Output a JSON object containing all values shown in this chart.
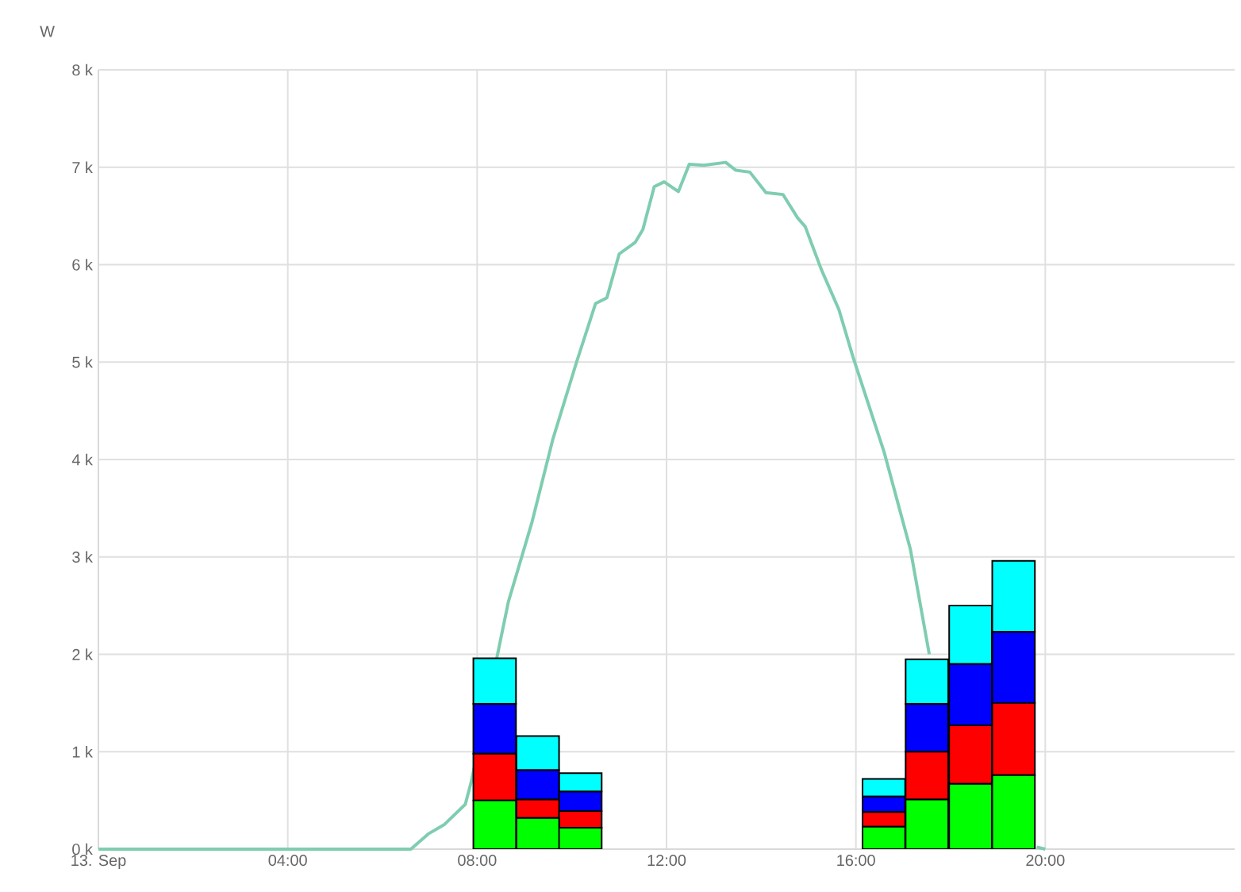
{
  "chart_data": {
    "type": "bar",
    "stacked": true,
    "ylabel": "W",
    "x": [
      8.37,
      9.28,
      10.18,
      16.59,
      17.5,
      18.42,
      19.33
    ],
    "series": [
      {
        "color": "#00ff00",
        "values": [
          0.5,
          0.32,
          0.22,
          0.23,
          0.51,
          0.67,
          0.76
        ]
      },
      {
        "color": "#ff0000",
        "values": [
          0.48,
          0.19,
          0.17,
          0.15,
          0.49,
          0.6,
          0.74
        ]
      },
      {
        "color": "#0000ff",
        "values": [
          0.51,
          0.3,
          0.2,
          0.16,
          0.49,
          0.63,
          0.73
        ]
      },
      {
        "color": "#00ffff",
        "values": [
          0.47,
          0.35,
          0.19,
          0.18,
          0.46,
          0.6,
          0.73
        ]
      },
      {
        "type": "line",
        "color": "#7fcdb0",
        "x": [
          0,
          6.6,
          6.98,
          7.3,
          7.75,
          7.88,
          8.66,
          9.16,
          9.6,
          10.1,
          10.5,
          10.74,
          11.0,
          11.34,
          11.5,
          11.74,
          11.95,
          12.25,
          12.48,
          12.79,
          13.25,
          13.46,
          13.76,
          14.1,
          14.46,
          14.77,
          14.93,
          15.27,
          15.64,
          15.94,
          16.6,
          17.15,
          17.55,
          18.4,
          19.82,
          20.0
        ],
        "values": [
          0,
          0,
          0.16,
          0.25,
          0.46,
          0.7,
          2.54,
          3.36,
          4.21,
          5.0,
          5.6,
          5.66,
          6.11,
          6.23,
          6.36,
          6.8,
          6.85,
          6.75,
          7.03,
          7.02,
          7.05,
          6.97,
          6.95,
          6.74,
          6.72,
          6.48,
          6.39,
          5.95,
          5.54,
          5.05,
          4.07,
          3.08,
          2.0,
          null,
          0.02,
          0
        ]
      }
    ],
    "xlim": [
      0,
      24
    ],
    "xticks": [
      {
        "value": 0,
        "label": "13. Sep"
      },
      {
        "value": 4,
        "label": "04:00"
      },
      {
        "value": 8,
        "label": "08:00"
      },
      {
        "value": 12,
        "label": "12:00"
      },
      {
        "value": 16,
        "label": "16:00"
      },
      {
        "value": 20,
        "label": "20:00"
      }
    ],
    "ylim": [
      0,
      8
    ],
    "yticks": [
      {
        "value": 0,
        "label": "0 k"
      },
      {
        "value": 1,
        "label": "1 k"
      },
      {
        "value": 2,
        "label": "2 k"
      },
      {
        "value": 3,
        "label": "3 k"
      },
      {
        "value": 4,
        "label": "4 k"
      },
      {
        "value": 5,
        "label": "5 k"
      },
      {
        "value": 6,
        "label": "6 k"
      },
      {
        "value": 7,
        "label": "7 k"
      },
      {
        "value": 8,
        "label": "8 k"
      }
    ],
    "grid": true,
    "line_style": "solid"
  }
}
